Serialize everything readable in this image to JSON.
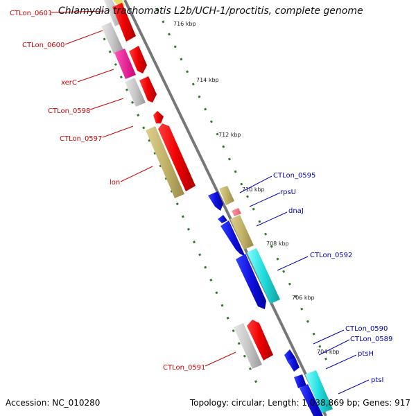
{
  "title": "Chlamydia trachomatis L2b/UCH-1/proctitis, complete genome",
  "footer": {
    "accession": "Accession: NC_010280",
    "summary": "Topology: circular; Length: 1,038,869 bp; Genes: 917"
  },
  "colors": {
    "forward_label": "#cc0000",
    "reverse_label": "#0000bb",
    "backbone": "#888888",
    "tick": "#227722"
  },
  "ticks": [
    "716 kbp",
    "714 kbp",
    "712 kbp",
    "710 kbp",
    "708 kbp",
    "706 kbp",
    "704 kbp"
  ],
  "forward_labels": [
    "CTLon_0601",
    "CTLon_0600",
    "xerC",
    "CTLon_0598",
    "CTLon_0597",
    "lon",
    "CTLon_0591"
  ],
  "reverse_labels": [
    "CTLon_0595",
    "rpsU",
    "dnaJ",
    "CTLon_0592",
    "CTLon_0590",
    "CTLon_0589",
    "ptsH",
    "ptsI"
  ]
}
